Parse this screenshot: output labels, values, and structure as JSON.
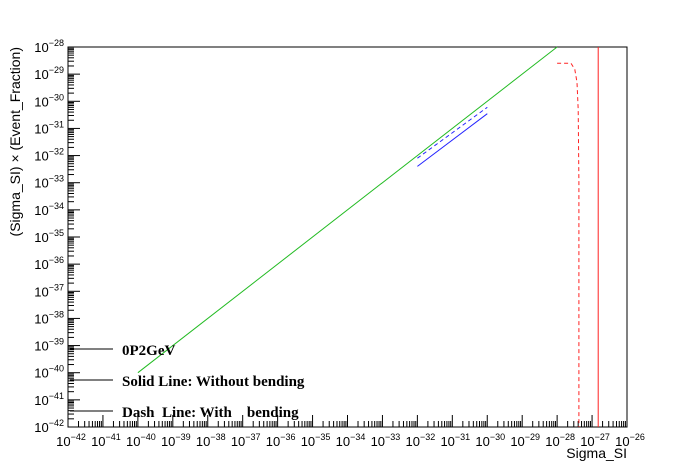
{
  "chart_data": {
    "type": "line",
    "xlabel": "Sigma_SI",
    "ylabel": "(Sigma_SI) × (Event_Fraction)",
    "x_scale": "log",
    "y_scale": "log",
    "xlim": [
      1e-42,
      1e-26
    ],
    "ylim": [
      1e-42,
      1e-28
    ],
    "x_tick_exponents": [
      -42,
      -41,
      -40,
      -39,
      -38,
      -37,
      -36,
      -35,
      -34,
      -33,
      -32,
      -31,
      -30,
      -29,
      -28,
      -27,
      -26
    ],
    "y_tick_exponents": [
      -42,
      -41,
      -40,
      -39,
      -38,
      -37,
      -36,
      -35,
      -34,
      -33,
      -32,
      -31,
      -30,
      -29,
      -28
    ],
    "tick_base": "10",
    "grid": false,
    "series": [
      {
        "color": "#22bb22",
        "style": "solid",
        "x": [
          1e-40,
          1e-28
        ],
        "y": [
          1e-40,
          1e-28
        ]
      },
      {
        "color": "#2222ff",
        "style": "solid",
        "x": [
          1e-32,
          1e-30
        ],
        "y": [
          4e-33,
          3.5e-31
        ]
      },
      {
        "color": "#2222ff",
        "style": "dashed",
        "x": [
          1e-32,
          1e-30
        ],
        "y": [
          8e-33,
          6e-31
        ]
      },
      {
        "color": "#ff2222",
        "style": "solid",
        "x": [
          1.5e-27,
          1.5e-27
        ],
        "y": [
          1e-42,
          1e-28
        ]
      },
      {
        "color": "#ff2222",
        "style": "dashed",
        "x": [
          1e-28,
          2.5e-28,
          3.2e-28,
          3.7e-28,
          4e-28,
          4.2e-28,
          4.2e-28
        ],
        "y": [
          2.5e-29,
          2.5e-29,
          1.5e-29,
          5e-30,
          5e-31,
          1e-33,
          1e-42
        ]
      }
    ],
    "legend": {
      "placement": "bottom-left",
      "entries": [
        "0P2GeV",
        "Solid Line: Without bending",
        "Dash  Line: With    bending"
      ]
    }
  }
}
